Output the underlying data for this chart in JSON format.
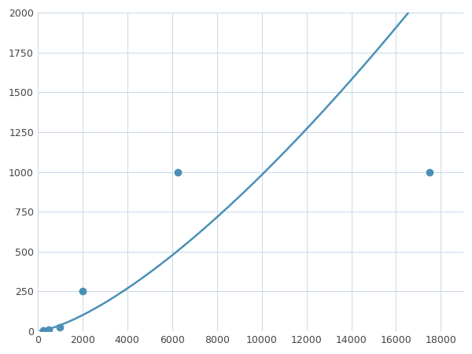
{
  "x": [
    250,
    500,
    1000,
    2000,
    6250,
    17500
  ],
  "y": [
    5,
    10,
    25,
    250,
    1000,
    1000
  ],
  "line_color": "#4A90B8",
  "marker_color": "#4A90B8",
  "marker_size": 6,
  "line_width": 1.8,
  "xlim": [
    0,
    19000
  ],
  "ylim": [
    0,
    2000
  ],
  "xticks": [
    0,
    2000,
    4000,
    6000,
    8000,
    10000,
    12000,
    14000,
    16000,
    18000
  ],
  "yticks": [
    0,
    250,
    500,
    750,
    1000,
    1250,
    1500,
    1750,
    2000
  ],
  "grid_color": "#C8D8E8",
  "background_color": "#FFFFFF",
  "fig_background": "#FFFFFF"
}
